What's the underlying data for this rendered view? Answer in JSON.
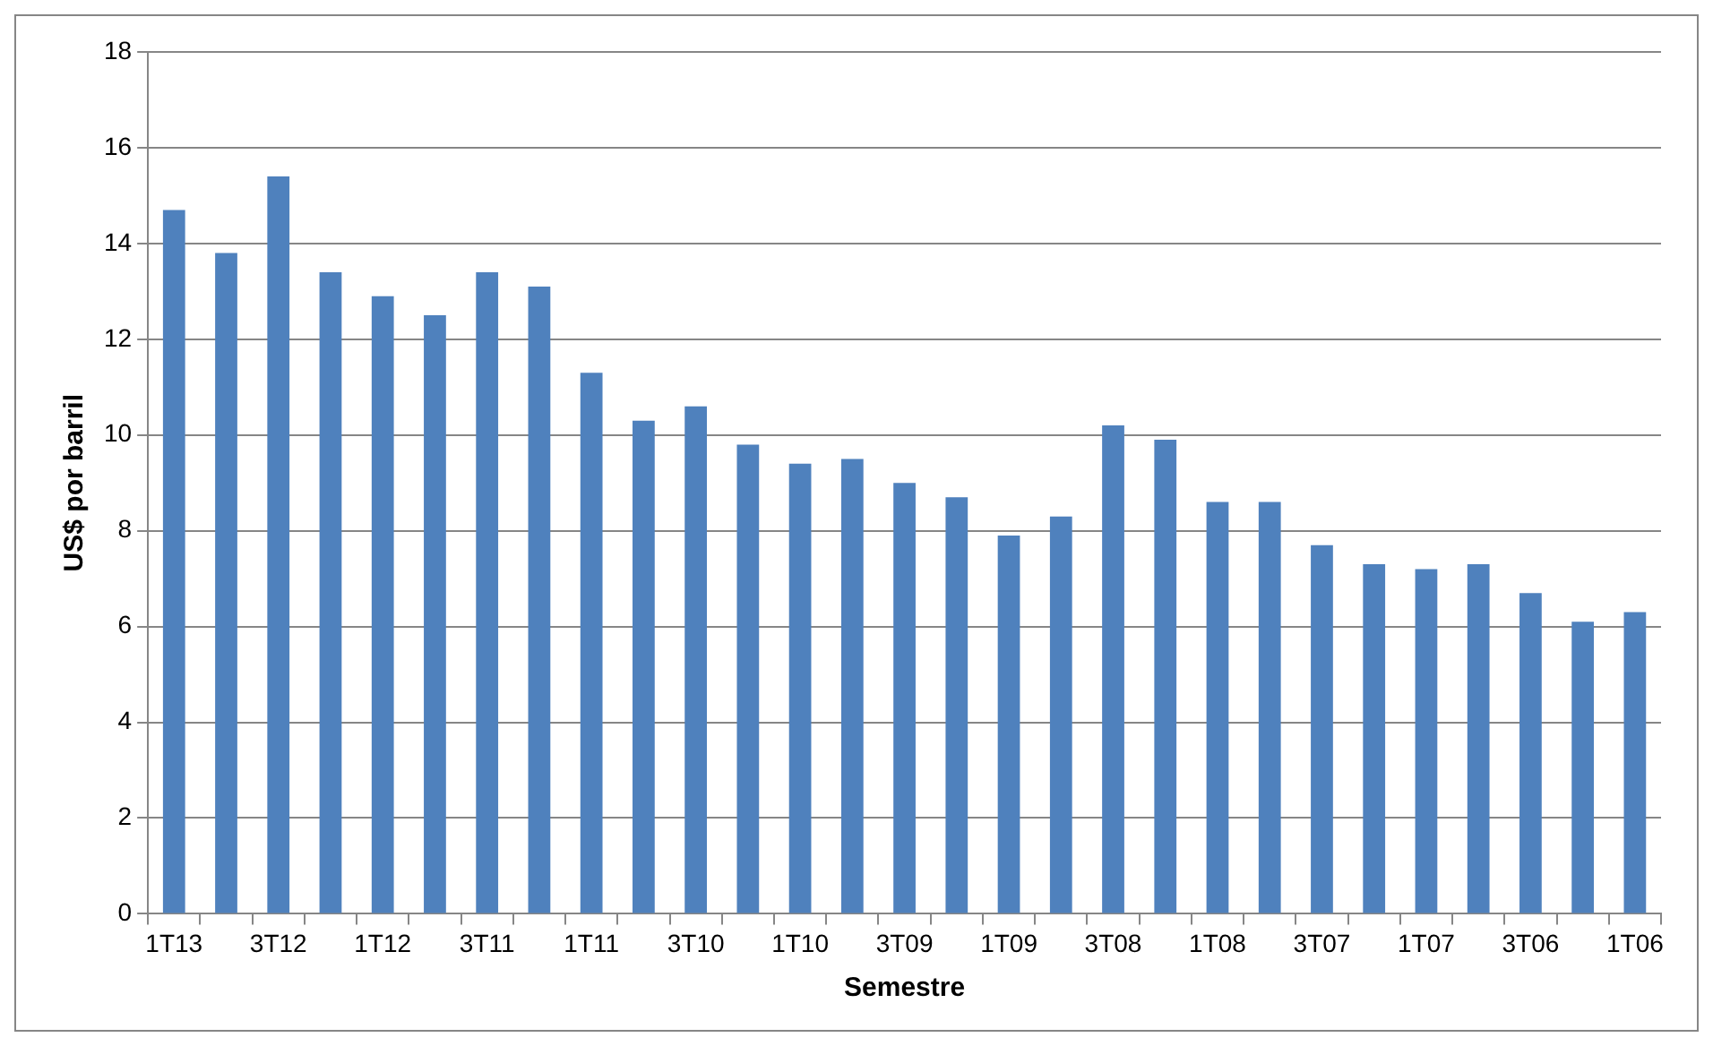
{
  "chart_data": {
    "type": "bar",
    "xlabel": "Semestre",
    "ylabel": "US$ por barril",
    "categories": [
      "1T13",
      null,
      "3T12",
      null,
      "1T12",
      null,
      "3T11",
      null,
      "1T11",
      null,
      "3T10",
      null,
      "1T10",
      null,
      "3T09",
      null,
      "1T09",
      null,
      "3T08",
      null,
      "1T08",
      null,
      "3T07",
      null,
      "1T07",
      null,
      "3T06",
      null,
      "1T06"
    ],
    "values": [
      14.7,
      13.8,
      15.4,
      13.4,
      12.9,
      12.5,
      13.4,
      13.1,
      11.3,
      10.3,
      10.6,
      9.8,
      9.4,
      9.5,
      9.0,
      8.7,
      7.9,
      8.3,
      10.2,
      9.9,
      8.6,
      8.6,
      7.7,
      7.3,
      7.2,
      7.3,
      6.7,
      6.1,
      6.3
    ],
    "color": "#4f81bd",
    "ylim": [
      0,
      18
    ],
    "yticks": [
      0,
      2,
      4,
      6,
      8,
      10,
      12,
      14,
      16,
      18
    ],
    "grid": "y",
    "legend": false
  }
}
